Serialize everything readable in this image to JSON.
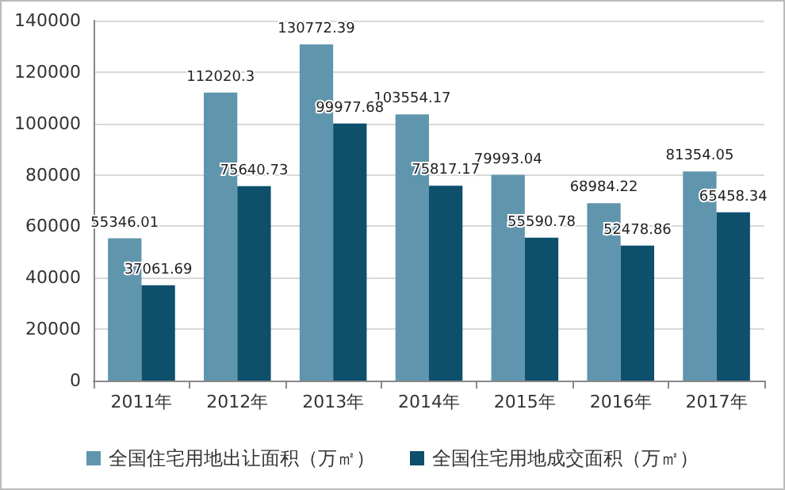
{
  "chart_data": {
    "type": "bar",
    "categories": [
      "2011年",
      "2012年",
      "2013年",
      "2014年",
      "2015年",
      "2016年",
      "2017年"
    ],
    "series": [
      {
        "name": "全国住宅用地出让面积（万㎡）",
        "color": "#6096ad",
        "values": [
          55346.01,
          112020.3,
          130772.39,
          103554.17,
          79993.04,
          68984.22,
          81354.05
        ]
      },
      {
        "name": "全国住宅用地成交面积（万㎡）",
        "color": "#0e4f6c",
        "values": [
          37061.69,
          75640.73,
          99977.68,
          75817.17,
          55590.78,
          52478.86,
          65458.34
        ]
      }
    ],
    "ylim": [
      0,
      140000
    ],
    "yticks": [
      0,
      20000,
      40000,
      60000,
      80000,
      100000,
      120000,
      140000
    ],
    "grid": "y",
    "legend": "bottom",
    "data_labels": true
  }
}
